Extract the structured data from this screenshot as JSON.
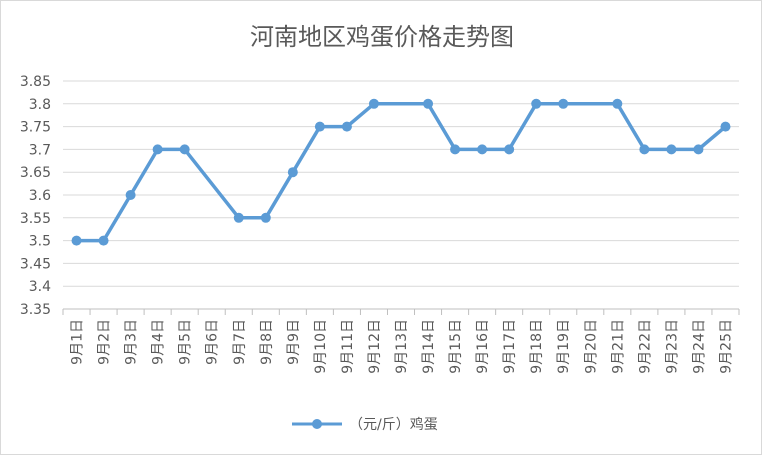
{
  "chart_data": {
    "type": "line",
    "title": "河南地区鸡蛋价格走势图",
    "categories": [
      "9月1日",
      "9月2日",
      "9月3日",
      "9月4日",
      "9月5日",
      "9月6日",
      "9月7日",
      "9月8日",
      "9月9日",
      "9月10日",
      "9月11日",
      "9月12日",
      "9月13日",
      "9月14日",
      "9月15日",
      "9月16日",
      "9月17日",
      "9月18日",
      "9月19日",
      "9月20日",
      "9月21日",
      "9月22日",
      "9月23日",
      "9月24日",
      "9月25日"
    ],
    "series": [
      {
        "name": "（元/斤）鸡蛋",
        "color": "#5b9bd5",
        "values": [
          3.5,
          3.5,
          3.6,
          3.7,
          3.7,
          null,
          3.55,
          3.55,
          3.65,
          3.75,
          3.75,
          3.8,
          null,
          3.8,
          3.7,
          3.7,
          3.7,
          3.8,
          3.8,
          null,
          3.8,
          3.7,
          3.7,
          3.7,
          3.75
        ]
      }
    ],
    "ylim": [
      3.35,
      3.85
    ],
    "ystep": 0.05,
    "yticks": [
      "3.35",
      "3.4",
      "3.45",
      "3.5",
      "3.55",
      "3.6",
      "3.65",
      "3.7",
      "3.75",
      "3.8",
      "3.85"
    ],
    "grid": true,
    "legend_position": "bottom"
  }
}
